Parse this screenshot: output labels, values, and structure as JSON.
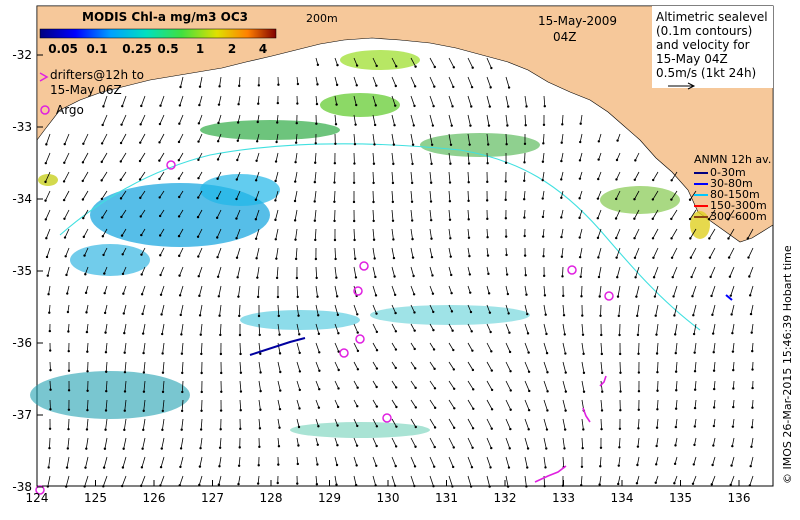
{
  "colorbar": {
    "title": "MODIS Chl-a mg/m3 OC3",
    "ticks": [
      "0.05",
      "0.1",
      "0.25",
      "0.5",
      "1",
      "2",
      "4"
    ]
  },
  "date": "15-May-2009",
  "time": "04Z",
  "contour_label": "200m",
  "drifters_legend": {
    "line1": "drifters@12h to",
    "line2": "15-May 06Z"
  },
  "argo_legend": "Argo",
  "altimetry_legend": [
    "Altimetric sealevel",
    "(0.1m contours)",
    "and velocity for",
    "15-May 04Z",
    "0.5m/s (1kt 24h)"
  ],
  "anmn_legend": {
    "title": "ANMN 12h av.",
    "items": [
      {
        "label": "0-30m",
        "color": "#000080"
      },
      {
        "label": "30-80m",
        "color": "#0000ff"
      },
      {
        "label": "80-150m",
        "color": "#00c8ff"
      },
      {
        "label": "150-300m",
        "color": "#ff0000"
      },
      {
        "label": "300-600m",
        "color": "#8b4513"
      }
    ]
  },
  "credit": "© IMOS 26-Mar-2015 15:46:39 Hobart time",
  "axes": {
    "x_ticks": [
      "124",
      "125",
      "126",
      "127",
      "128",
      "129",
      "130",
      "131",
      "132",
      "133",
      "134",
      "135",
      "136"
    ],
    "y_ticks": [
      "-32",
      "-33",
      "-34",
      "-35",
      "-36",
      "-37",
      "-38"
    ]
  },
  "colors": {
    "land": "#f6c89a",
    "argo": "#e020e0",
    "contour": "#40e0e0",
    "arrow": "#000000"
  }
}
